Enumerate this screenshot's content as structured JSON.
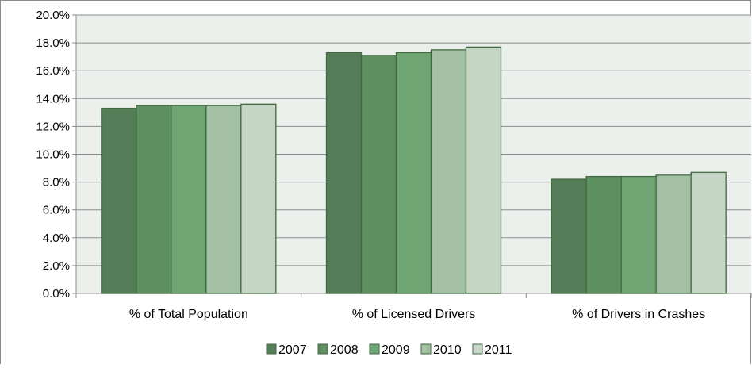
{
  "chart_data": {
    "type": "bar",
    "title": "",
    "xlabel": "",
    "ylabel": "",
    "categories": [
      "% of Total Population",
      "% of Licensed Drivers",
      "% of Drivers in Crashes"
    ],
    "series": [
      {
        "name": "2007",
        "color": "#557d57",
        "values": [
          13.3,
          17.3,
          8.2
        ]
      },
      {
        "name": "2008",
        "color": "#5e8f60",
        "values": [
          13.5,
          17.1,
          8.4
        ]
      },
      {
        "name": "2009",
        "color": "#6fa473",
        "values": [
          13.5,
          17.3,
          8.4
        ]
      },
      {
        "name": "2010",
        "color": "#a3c0a5",
        "values": [
          13.5,
          17.5,
          8.5
        ]
      },
      {
        "name": "2011",
        "color": "#c5d6c6",
        "values": [
          13.6,
          17.7,
          8.7
        ]
      }
    ],
    "ylim": [
      0,
      20
    ],
    "yticks": [
      0,
      2,
      4,
      6,
      8,
      10,
      12,
      14,
      16,
      18,
      20
    ],
    "ytick_labels": [
      "0.0%",
      "2.0%",
      "4.0%",
      "6.0%",
      "8.0%",
      "10.0%",
      "12.0%",
      "14.0%",
      "16.0%",
      "18.0%",
      "20.0%"
    ],
    "grid": true,
    "legend_position": "bottom",
    "colors": {
      "plot_background": "#ecf0ec",
      "bar_outline": "#3f6a3f",
      "gridline": "#8c8c8c"
    }
  }
}
